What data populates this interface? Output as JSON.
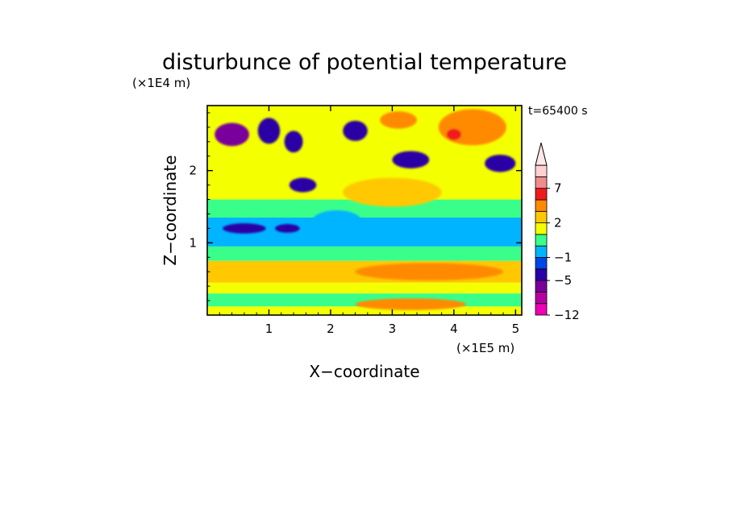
{
  "chart_data": {
    "type": "heatmap",
    "title": "disturbunce of potential temperature",
    "xlabel": "X−coordinate",
    "ylabel": "Z−coordinate",
    "x_scale_note": "(×1E5 m)",
    "y_scale_note": "(×1E4 m)",
    "time_label": "t=65400 s",
    "xlim": [
      0,
      5.1
    ],
    "ylim": [
      0,
      2.9
    ],
    "x_ticks": [
      1,
      2,
      3,
      4,
      5
    ],
    "x_tick_labels": [
      "1",
      "2",
      "3",
      "4",
      "5"
    ],
    "y_ticks": [
      1,
      2
    ],
    "y_tick_labels": [
      "1",
      "2"
    ],
    "colorbar": {
      "levels": [
        -12,
        -9,
        -7,
        -5,
        -3,
        -1,
        0,
        1,
        2,
        3,
        5,
        7,
        9,
        11
      ],
      "colors": [
        "#ee00b4",
        "#b800a2",
        "#7a009c",
        "#2b00a6",
        "#0046e6",
        "#00b4ff",
        "#39ff8a",
        "#f4ff00",
        "#ffc800",
        "#ff8a00",
        "#f01c1c",
        "#f08c8c",
        "#ffd0d0"
      ],
      "extend_color": "#ffe8e8",
      "tick_values": [
        -12,
        -5,
        -1,
        2,
        7
      ],
      "tick_labels": [
        "−12",
        "−5",
        "−1",
        "2",
        "7"
      ]
    },
    "field_bands": [
      {
        "z_range": [
          0.0,
          0.12
        ],
        "value": 1.5
      },
      {
        "z_range": [
          0.12,
          0.3
        ],
        "value": 0.4
      },
      {
        "z_range": [
          0.3,
          0.45
        ],
        "value": 1.5
      },
      {
        "z_range": [
          0.45,
          0.75
        ],
        "value": 2.4
      },
      {
        "z_range": [
          0.75,
          0.95
        ],
        "value": 0.4
      },
      {
        "z_range": [
          0.95,
          1.35
        ],
        "value": -0.6
      },
      {
        "z_range": [
          1.35,
          1.6
        ],
        "value": 0.4
      },
      {
        "z_range": [
          1.6,
          2.9
        ],
        "value": 1.5
      }
    ],
    "features": [
      {
        "x": 0.4,
        "z": 2.5,
        "rx": 0.28,
        "rz": 0.16,
        "value": -6.5
      },
      {
        "x": 1.0,
        "z": 2.55,
        "rx": 0.18,
        "rz": 0.18,
        "value": -3.5
      },
      {
        "x": 1.4,
        "z": 2.4,
        "rx": 0.15,
        "rz": 0.15,
        "value": -3.5
      },
      {
        "x": 1.55,
        "z": 1.8,
        "rx": 0.22,
        "rz": 0.1,
        "value": -3.5
      },
      {
        "x": 2.4,
        "z": 2.55,
        "rx": 0.2,
        "rz": 0.14,
        "value": -3.5
      },
      {
        "x": 3.3,
        "z": 2.15,
        "rx": 0.3,
        "rz": 0.12,
        "value": -3.5
      },
      {
        "x": 4.75,
        "z": 2.1,
        "rx": 0.25,
        "rz": 0.12,
        "value": -3.5
      },
      {
        "x": 3.1,
        "z": 2.7,
        "rx": 0.3,
        "rz": 0.12,
        "value": 3.5
      },
      {
        "x": 4.3,
        "z": 2.6,
        "rx": 0.55,
        "rz": 0.25,
        "value": 3.5
      },
      {
        "x": 4.0,
        "z": 2.5,
        "rx": 0.12,
        "rz": 0.08,
        "value": 6.0
      },
      {
        "x": 3.0,
        "z": 1.7,
        "rx": 0.8,
        "rz": 0.2,
        "value": 2.4
      },
      {
        "x": 0.6,
        "z": 1.2,
        "rx": 0.35,
        "rz": 0.07,
        "value": -3.5
      },
      {
        "x": 1.3,
        "z": 1.2,
        "rx": 0.2,
        "rz": 0.06,
        "value": -3.5
      },
      {
        "x": 2.1,
        "z": 1.3,
        "rx": 0.4,
        "rz": 0.15,
        "value": -0.6
      },
      {
        "x": 3.6,
        "z": 0.6,
        "rx": 1.2,
        "rz": 0.12,
        "value": 3.5
      },
      {
        "x": 3.3,
        "z": 0.15,
        "rx": 0.9,
        "rz": 0.08,
        "value": 3.5
      }
    ]
  }
}
